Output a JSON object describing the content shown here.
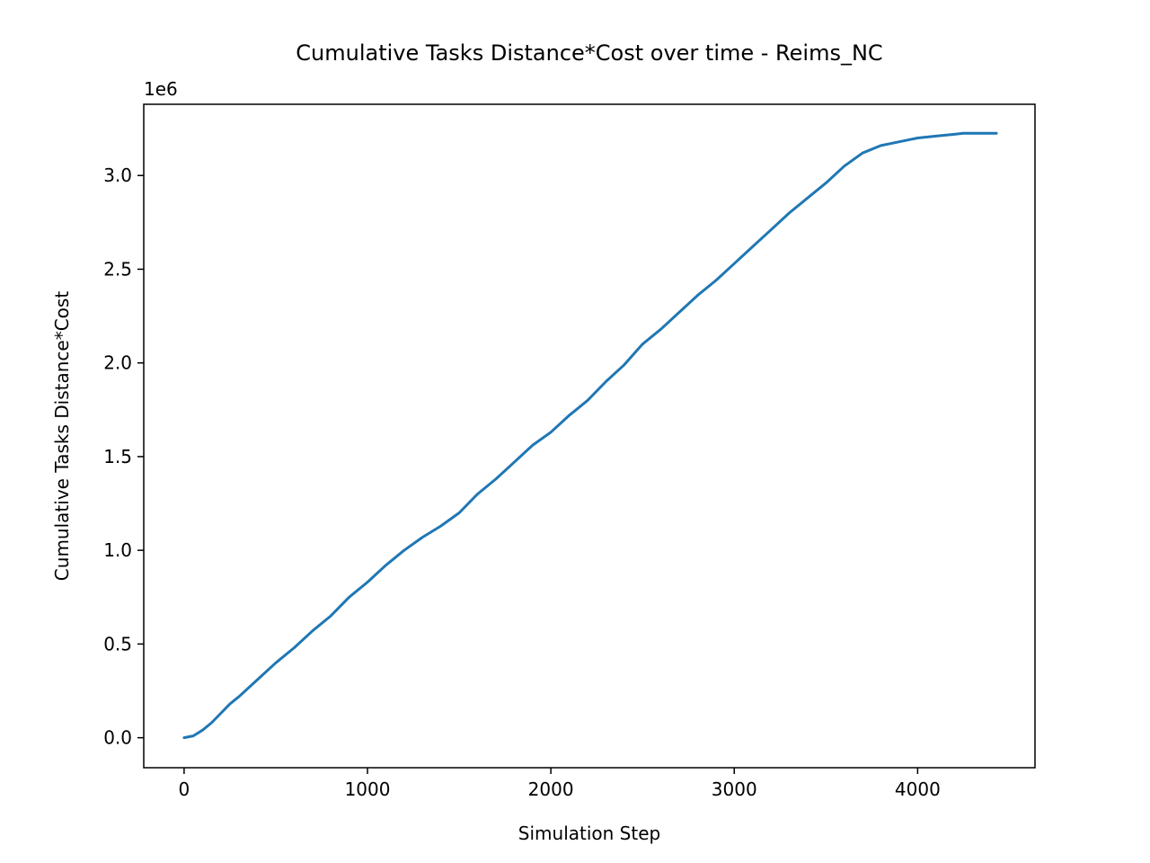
{
  "chart_data": {
    "type": "line",
    "title": "Cumulative Tasks Distance*Cost over time - Reims_NC",
    "xlabel": "Simulation Step",
    "ylabel": "Cumulative Tasks Distance*Cost",
    "y_offset_label": "1e6",
    "xlim": [
      -220,
      4640
    ],
    "ylim": [
      -0.16,
      3.38
    ],
    "xticks": [
      0,
      1000,
      2000,
      3000,
      4000
    ],
    "xtick_labels": [
      "0",
      "1000",
      "2000",
      "3000",
      "4000"
    ],
    "yticks": [
      0.0,
      0.5,
      1.0,
      1.5,
      2.0,
      2.5,
      3.0
    ],
    "ytick_labels": [
      "0.0",
      "0.5",
      "1.0",
      "1.5",
      "2.0",
      "2.5",
      "3.0"
    ],
    "grid": false,
    "line_color": "#1f77b4",
    "series": [
      {
        "x": [
          0,
          50,
          100,
          150,
          200,
          250,
          300,
          400,
          500,
          600,
          700,
          800,
          900,
          1000,
          1100,
          1200,
          1300,
          1400,
          1500,
          1600,
          1700,
          1800,
          1900,
          2000,
          2100,
          2200,
          2300,
          2400,
          2500,
          2600,
          2700,
          2800,
          2900,
          3000,
          3100,
          3200,
          3300,
          3400,
          3500,
          3600,
          3700,
          3800,
          3850,
          3900,
          4000,
          4100,
          4200,
          4250,
          4300,
          4430
        ],
        "y": [
          0.0,
          0.01,
          0.04,
          0.08,
          0.13,
          0.18,
          0.22,
          0.31,
          0.4,
          0.48,
          0.57,
          0.65,
          0.75,
          0.83,
          0.92,
          1.0,
          1.07,
          1.13,
          1.2,
          1.3,
          1.38,
          1.47,
          1.56,
          1.63,
          1.72,
          1.8,
          1.9,
          1.99,
          2.1,
          2.18,
          2.27,
          2.36,
          2.44,
          2.53,
          2.62,
          2.71,
          2.8,
          2.88,
          2.96,
          3.05,
          3.12,
          3.16,
          3.17,
          3.18,
          3.2,
          3.21,
          3.22,
          3.225,
          3.225,
          3.225
        ]
      }
    ]
  }
}
